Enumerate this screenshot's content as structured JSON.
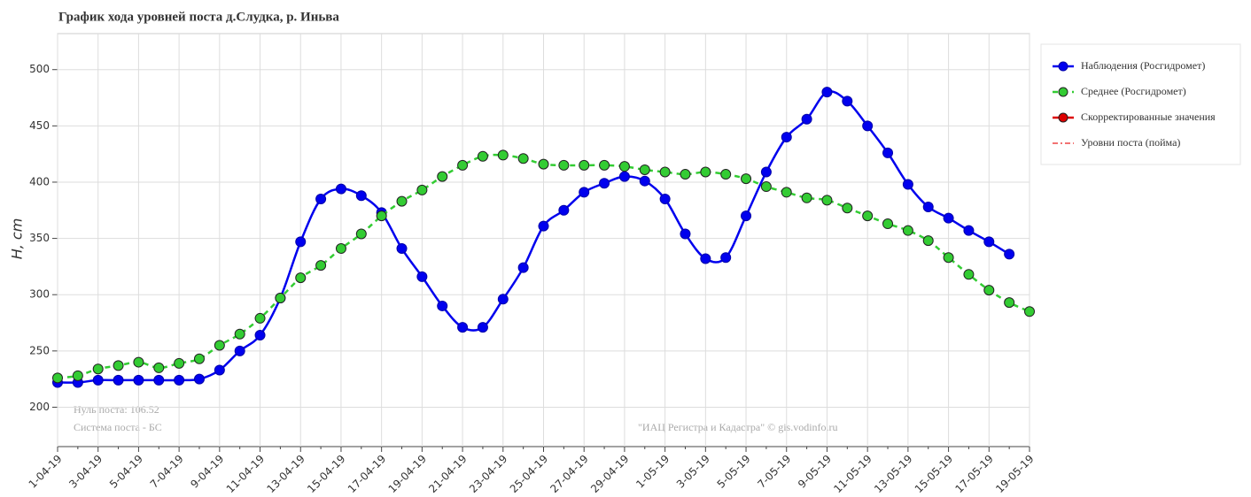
{
  "chart_data": {
    "type": "line",
    "title": "График хода уровней поста д.Слудка, р. Иньва",
    "y_label": "H, cm",
    "annotations": [
      "Нуль поста: 106.52",
      "Система поста - БС",
      "\"ИАЦ Регистра и Кадастра\" © gis.vodinfo.ru"
    ],
    "categories": [
      "1-04-19",
      null,
      "3-04-19",
      null,
      "5-04-19",
      null,
      "7-04-19",
      null,
      "9-04-19",
      null,
      "11-04-19",
      null,
      "13-04-19",
      null,
      "15-04-19",
      null,
      "17-04-19",
      null,
      "19-04-19",
      null,
      "21-04-19",
      null,
      "23-04-19",
      null,
      "25-04-19",
      null,
      "27-04-19",
      null,
      "29-04-19",
      null,
      "1-05-19",
      null,
      "3-05-19",
      null,
      "5-05-19",
      null,
      "7-05-19",
      null,
      "9-05-19",
      null,
      "11-05-19",
      null,
      "13-05-19",
      null,
      "15-05-19",
      null,
      "17-05-19",
      null,
      "19-05-19"
    ],
    "series": [
      {
        "name": "Наблюдения (Росгидромет)",
        "color": "#0000ee",
        "style": "solid",
        "marker": true,
        "values": [
          222,
          222,
          224,
          224,
          224,
          224,
          224,
          225,
          233,
          250,
          264,
          297,
          347,
          385,
          394,
          388,
          373,
          341,
          316,
          290,
          271,
          271,
          296,
          324,
          361,
          375,
          391,
          399,
          405,
          401,
          385,
          354,
          332,
          333,
          370,
          409,
          440,
          456,
          480,
          472,
          450,
          426,
          398,
          378,
          368,
          357,
          347,
          336,
          null
        ]
      },
      {
        "name": "Среднее (Росгидромет)",
        "color": "#33cc33",
        "style": "dashed",
        "marker": true,
        "values": [
          226,
          228,
          234,
          237,
          240,
          235,
          239,
          243,
          255,
          265,
          279,
          297,
          315,
          326,
          341,
          354,
          370,
          383,
          393,
          405,
          415,
          423,
          424,
          421,
          416,
          415,
          415,
          415,
          414,
          411,
          409,
          407,
          409,
          407,
          403,
          396,
          391,
          386,
          384,
          377,
          370,
          363,
          357,
          348,
          333,
          318,
          304,
          293,
          285
        ]
      },
      {
        "name": "Скорректированные значения",
        "color": "#dd0000",
        "style": "solid",
        "marker": true,
        "values": [
          null,
          null,
          null,
          null,
          null,
          null,
          null,
          null,
          null,
          null,
          null,
          null,
          null,
          null,
          null,
          null,
          null,
          null,
          null,
          null,
          null,
          null,
          null,
          null,
          null,
          null,
          null,
          null,
          null,
          null,
          null,
          null,
          null,
          null,
          null,
          null,
          null,
          null,
          null,
          null,
          null,
          null,
          null,
          null,
          null,
          null,
          null,
          null,
          null
        ]
      },
      {
        "name": "Уровни поста (пойма)",
        "color": "#ee4444",
        "style": "dashdot",
        "marker": false,
        "values": [
          null,
          null,
          null,
          null,
          null,
          null,
          null,
          null,
          null,
          null,
          null,
          null,
          null,
          null,
          null,
          null,
          null,
          null,
          null,
          null,
          null,
          null,
          null,
          null,
          null,
          null,
          null,
          null,
          null,
          null,
          null,
          null,
          null,
          null,
          null,
          null,
          null,
          null,
          null,
          null,
          null,
          null,
          null,
          null,
          null,
          null,
          null,
          null,
          null
        ]
      }
    ],
    "ylim": [
      165,
      532
    ],
    "yticks": [
      200,
      250,
      300,
      350,
      400,
      450,
      500
    ],
    "grid": true,
    "legend": "right"
  }
}
